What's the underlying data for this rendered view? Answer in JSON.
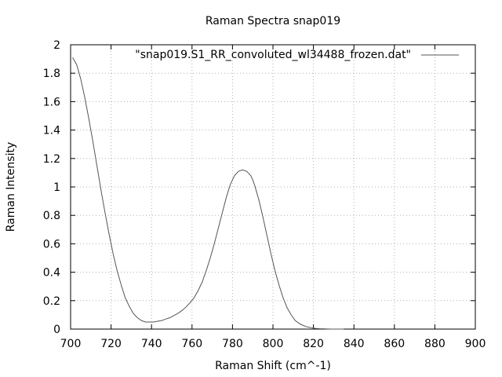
{
  "chart_data": {
    "type": "line",
    "title": "Raman Spectra snap019",
    "xlabel": "Raman Shift (cm^-1)",
    "ylabel": "Raman Intensity",
    "xlim": [
      700,
      900
    ],
    "ylim": [
      0,
      2
    ],
    "xticks": [
      700,
      720,
      740,
      760,
      780,
      800,
      820,
      840,
      860,
      880,
      900
    ],
    "yticks": [
      0,
      0.2,
      0.4,
      0.6,
      0.8,
      1,
      1.2,
      1.4,
      1.6,
      1.8,
      2
    ],
    "ytick_labels": [
      "0",
      "0.2",
      "0.4",
      "0.6",
      "0.8",
      "1",
      "1.2",
      "1.4",
      "1.6",
      "1.8",
      "2"
    ],
    "grid": true,
    "legend_position": "top-right",
    "series": [
      {
        "name": "\"snap019.S1_RR_convoluted_wl34488_frozen.dat\"",
        "color": "#555555",
        "x": [
          701,
          703,
          705,
          707,
          709,
          711,
          713,
          715,
          717,
          719,
          721,
          723,
          725,
          727,
          729,
          731,
          733,
          735,
          737,
          739,
          741,
          743,
          745,
          747,
          749,
          751,
          753,
          755,
          757,
          759,
          761,
          763,
          765,
          767,
          769,
          771,
          773,
          775,
          777,
          779,
          781,
          783,
          785,
          787,
          789,
          790,
          791,
          793,
          795,
          797,
          799,
          801,
          803,
          805,
          807,
          809,
          811,
          813,
          815,
          817,
          819,
          821,
          823,
          825,
          827,
          829,
          831,
          833,
          835
        ],
        "y": [
          1.91,
          1.86,
          1.76,
          1.63,
          1.48,
          1.32,
          1.15,
          0.98,
          0.82,
          0.67,
          0.53,
          0.41,
          0.31,
          0.22,
          0.16,
          0.11,
          0.08,
          0.06,
          0.05,
          0.05,
          0.05,
          0.055,
          0.06,
          0.07,
          0.08,
          0.095,
          0.11,
          0.13,
          0.155,
          0.185,
          0.22,
          0.27,
          0.33,
          0.41,
          0.5,
          0.6,
          0.71,
          0.82,
          0.93,
          1.02,
          1.08,
          1.11,
          1.12,
          1.11,
          1.08,
          1.05,
          1.01,
          0.91,
          0.79,
          0.66,
          0.53,
          0.41,
          0.31,
          0.22,
          0.15,
          0.1,
          0.06,
          0.04,
          0.025,
          0.015,
          0.01,
          0.005,
          0.003,
          0.002,
          0.001,
          0.0,
          0.0,
          0.0,
          0.0
        ]
      }
    ]
  }
}
